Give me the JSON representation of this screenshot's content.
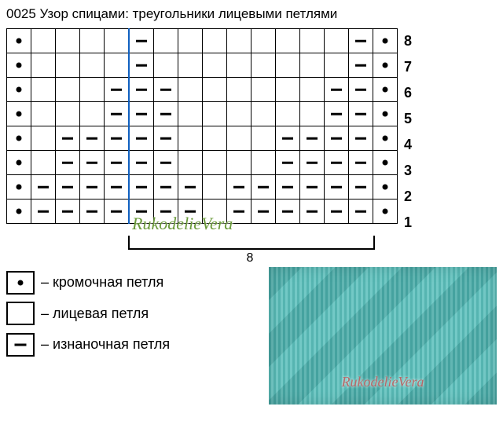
{
  "title": "0025 Узор спицами: треугольники лицевыми петлями",
  "chart": {
    "cols": 16,
    "blue_after_col": 4,
    "row_labels": [
      "8",
      "7",
      "6",
      "5",
      "4",
      "3",
      "2",
      "1"
    ],
    "rows": [
      [
        "d",
        "",
        "",
        "",
        "",
        "h",
        "",
        "",
        "",
        "",
        "",
        "",
        "",
        "",
        "h",
        "d"
      ],
      [
        "d",
        "",
        "",
        "",
        "",
        "h",
        "",
        "",
        "",
        "",
        "",
        "",
        "",
        "",
        "h",
        "d"
      ],
      [
        "d",
        "",
        "",
        "",
        "h",
        "h",
        "h",
        "",
        "",
        "",
        "",
        "",
        "",
        "h",
        "h",
        "d"
      ],
      [
        "d",
        "",
        "",
        "",
        "h",
        "h",
        "h",
        "",
        "",
        "",
        "",
        "",
        "",
        "h",
        "h",
        "d"
      ],
      [
        "d",
        "",
        "h",
        "h",
        "h",
        "h",
        "h",
        "",
        "",
        "",
        "",
        "h",
        "h",
        "h",
        "h",
        "d"
      ],
      [
        "d",
        "",
        "h",
        "h",
        "h",
        "h",
        "h",
        "",
        "",
        "",
        "",
        "h",
        "h",
        "h",
        "h",
        "d"
      ],
      [
        "d",
        "h",
        "h",
        "h",
        "h",
        "h",
        "h",
        "h",
        "",
        "h",
        "h",
        "h",
        "h",
        "h",
        "h",
        "d"
      ],
      [
        "d",
        "h",
        "h",
        "h",
        "h",
        "h",
        "h",
        "h",
        "",
        "h",
        "h",
        "h",
        "h",
        "h",
        "h",
        "d"
      ]
    ],
    "repeat_label": "8"
  },
  "watermark": "RukodelieVera",
  "legend": {
    "edge": "– кромочная петля",
    "knit": "– лицевая петля",
    "purl": "– изнаночная петля"
  }
}
